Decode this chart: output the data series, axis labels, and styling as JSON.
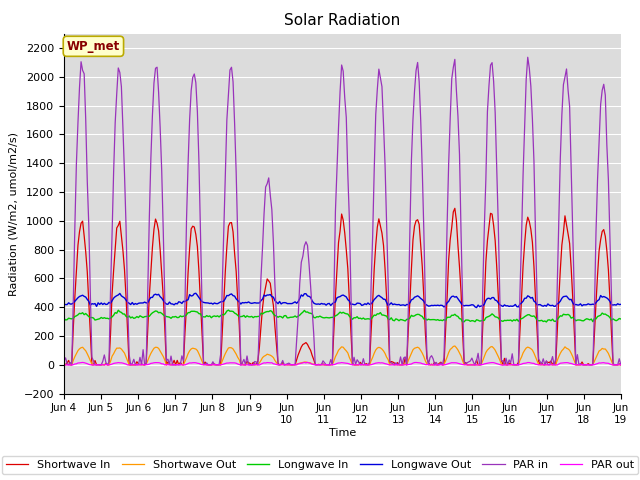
{
  "title": "Solar Radiation",
  "xlabel": "Time",
  "ylabel": "Radiation (W/m2, umol/m2/s)",
  "ylim": [
    -200,
    2300
  ],
  "yticks": [
    -200,
    0,
    200,
    400,
    600,
    800,
    1000,
    1200,
    1400,
    1600,
    1800,
    2000,
    2200
  ],
  "bg_color": "#dcdcdc",
  "fig_color": "#ffffff",
  "annotation_text": "WP_met",
  "lines": {
    "sw_in": {
      "label": "Shortwave In",
      "color": "#dd0000"
    },
    "sw_out": {
      "label": "Shortwave Out",
      "color": "#ff9900"
    },
    "lw_in": {
      "label": "Longwave In",
      "color": "#00cc00"
    },
    "lw_out": {
      "label": "Longwave Out",
      "color": "#0000dd"
    },
    "par_in": {
      "label": "PAR in",
      "color": "#9933bb"
    },
    "par_out": {
      "label": "PAR out",
      "color": "#ff00ff"
    }
  },
  "days": 15,
  "start_day": 4,
  "xtick_labels": [
    "Jun 4",
    "Jun 5",
    "Jun 6",
    "Jun 7",
    "Jun 8",
    "Jun 9",
    "Jun\n10",
    "Jun\n11",
    "Jun\n12",
    "Jun\n13",
    "Jun\n14",
    "Jun\n15",
    "Jun\n16",
    "Jun\n17",
    "Jun\n18",
    "Jun\n19"
  ]
}
